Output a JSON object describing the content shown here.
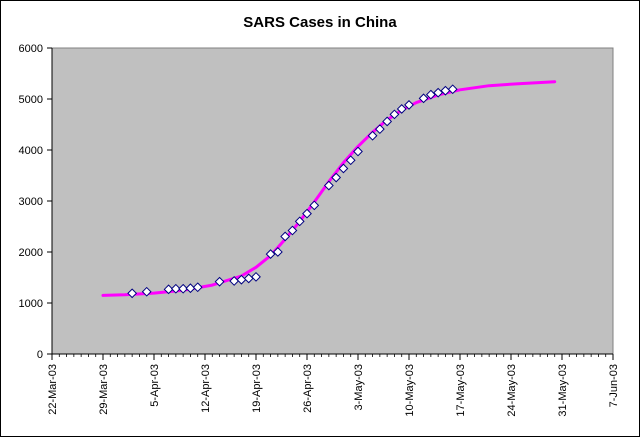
{
  "chart_data": {
    "type": "scatter",
    "title": "SARS Cases in China",
    "xlabel": "",
    "ylabel": "",
    "ylim": [
      0,
      6000
    ],
    "y_ticks": [
      0,
      1000,
      2000,
      3000,
      4000,
      5000,
      6000
    ],
    "x_axis_type": "date",
    "xlim": [
      "2003-03-22",
      "2003-06-07"
    ],
    "x_ticks": [
      {
        "date": "2003-03-22",
        "label": "22-Mar-03"
      },
      {
        "date": "2003-03-29",
        "label": "29-Mar-03"
      },
      {
        "date": "2003-04-05",
        "label": "5-Apr-03"
      },
      {
        "date": "2003-04-12",
        "label": "12-Apr-03"
      },
      {
        "date": "2003-04-19",
        "label": "19-Apr-03"
      },
      {
        "date": "2003-04-26",
        "label": "26-Apr-03"
      },
      {
        "date": "2003-05-03",
        "label": "3-May-03"
      },
      {
        "date": "2003-05-10",
        "label": "10-May-03"
      },
      {
        "date": "2003-05-17",
        "label": "17-May-03"
      },
      {
        "date": "2003-05-24",
        "label": "24-May-03"
      },
      {
        "date": "2003-05-31",
        "label": "31-May-03"
      },
      {
        "date": "2003-06-07",
        "label": "7-Jun-03"
      }
    ],
    "grid": false,
    "legend": "none",
    "plot_background": "#c0c0c0",
    "series": [
      {
        "kind": "markers",
        "marker": "diamond",
        "color": "#ffffff",
        "points": [
          {
            "x": "2003-04-02",
            "y": 1190
          },
          {
            "x": "2003-04-04",
            "y": 1220
          },
          {
            "x": "2003-04-07",
            "y": 1268
          },
          {
            "x": "2003-04-08",
            "y": 1279
          },
          {
            "x": "2003-04-09",
            "y": 1280
          },
          {
            "x": "2003-04-10",
            "y": 1290
          },
          {
            "x": "2003-04-11",
            "y": 1309
          },
          {
            "x": "2003-04-14",
            "y": 1418
          },
          {
            "x": "2003-04-16",
            "y": 1432
          },
          {
            "x": "2003-04-17",
            "y": 1457
          },
          {
            "x": "2003-04-18",
            "y": 1482
          },
          {
            "x": "2003-04-19",
            "y": 1512
          },
          {
            "x": "2003-04-21",
            "y": 1959
          },
          {
            "x": "2003-04-22",
            "y": 2001
          },
          {
            "x": "2003-04-23",
            "y": 2305
          },
          {
            "x": "2003-04-24",
            "y": 2422
          },
          {
            "x": "2003-04-25",
            "y": 2601
          },
          {
            "x": "2003-04-26",
            "y": 2753
          },
          {
            "x": "2003-04-27",
            "y": 2914
          },
          {
            "x": "2003-04-29",
            "y": 3303
          },
          {
            "x": "2003-04-30",
            "y": 3460
          },
          {
            "x": "2003-05-01",
            "y": 3638
          },
          {
            "x": "2003-05-02",
            "y": 3799
          },
          {
            "x": "2003-05-03",
            "y": 3971
          },
          {
            "x": "2003-05-05",
            "y": 4280
          },
          {
            "x": "2003-05-06",
            "y": 4409
          },
          {
            "x": "2003-05-07",
            "y": 4560
          },
          {
            "x": "2003-05-08",
            "y": 4698
          },
          {
            "x": "2003-05-09",
            "y": 4805
          },
          {
            "x": "2003-05-10",
            "y": 4884
          },
          {
            "x": "2003-05-12",
            "y": 5013
          },
          {
            "x": "2003-05-13",
            "y": 5086
          },
          {
            "x": "2003-05-14",
            "y": 5124
          },
          {
            "x": "2003-05-15",
            "y": 5163
          },
          {
            "x": "2003-05-16",
            "y": 5191
          }
        ]
      },
      {
        "kind": "line",
        "color": "#ff00ff",
        "points": [
          {
            "x": "2003-03-29",
            "y": 1150
          },
          {
            "x": "2003-04-01",
            "y": 1160
          },
          {
            "x": "2003-04-05",
            "y": 1195
          },
          {
            "x": "2003-04-09",
            "y": 1250
          },
          {
            "x": "2003-04-13",
            "y": 1350
          },
          {
            "x": "2003-04-17",
            "y": 1530
          },
          {
            "x": "2003-04-19",
            "y": 1700
          },
          {
            "x": "2003-04-21",
            "y": 1930
          },
          {
            "x": "2003-04-23",
            "y": 2250
          },
          {
            "x": "2003-04-25",
            "y": 2600
          },
          {
            "x": "2003-04-27",
            "y": 2980
          },
          {
            "x": "2003-04-29",
            "y": 3380
          },
          {
            "x": "2003-05-01",
            "y": 3750
          },
          {
            "x": "2003-05-03",
            "y": 4070
          },
          {
            "x": "2003-05-05",
            "y": 4350
          },
          {
            "x": "2003-05-07",
            "y": 4590
          },
          {
            "x": "2003-05-09",
            "y": 4780
          },
          {
            "x": "2003-05-11",
            "y": 4930
          },
          {
            "x": "2003-05-14",
            "y": 5080
          },
          {
            "x": "2003-05-17",
            "y": 5180
          },
          {
            "x": "2003-05-21",
            "y": 5260
          },
          {
            "x": "2003-05-25",
            "y": 5300
          },
          {
            "x": "2003-05-30",
            "y": 5340
          }
        ]
      }
    ]
  }
}
